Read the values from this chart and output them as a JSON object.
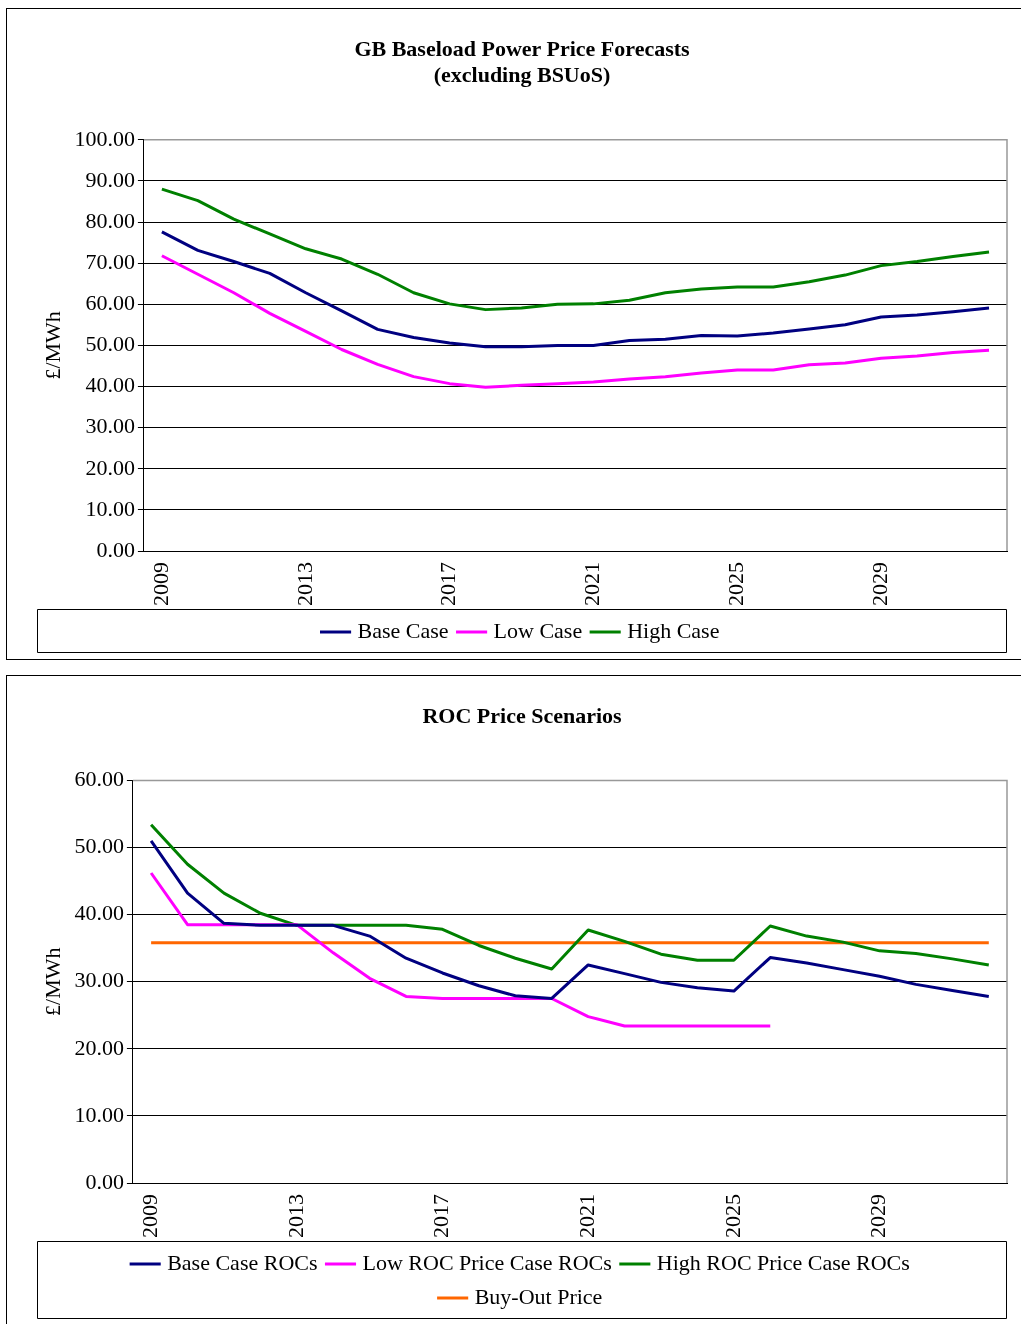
{
  "chart_data": [
    {
      "type": "line",
      "title": "GB Baseload Power Price Forecasts",
      "subtitle": "(excluding BSUoS)",
      "ylabel": "£/MWh",
      "categories": [
        "2009",
        null,
        null,
        null,
        "2013",
        null,
        null,
        null,
        "2017",
        null,
        null,
        null,
        "2021",
        null,
        null,
        null,
        "2025",
        null,
        null,
        null,
        "2029",
        null,
        null,
        null
      ],
      "series": [
        {
          "name": "Base Case",
          "color": "#000080",
          "values": [
            77.6,
            73.1,
            70.4,
            67.5,
            62.8,
            58.4,
            53.9,
            51.9,
            50.6,
            49.7,
            49.7,
            50.0,
            50.0,
            51.2,
            51.5,
            52.4,
            52.3,
            53.0,
            54.0,
            55.0,
            56.9,
            57.4,
            58.2,
            59.1
          ]
        },
        {
          "name": "Low Case",
          "color": "#ff00ff",
          "values": [
            71.8,
            67.3,
            62.8,
            57.8,
            53.4,
            49.0,
            45.4,
            42.4,
            40.7,
            39.8,
            40.3,
            40.7,
            41.1,
            41.8,
            42.4,
            43.3,
            44.0,
            44.0,
            45.3,
            45.7,
            46.9,
            47.4,
            48.3,
            48.8
          ]
        },
        {
          "name": "High Case",
          "color": "#008000",
          "values": [
            88.0,
            85.2,
            80.7,
            77.1,
            73.5,
            71.0,
            67.3,
            62.8,
            60.1,
            58.7,
            59.1,
            60.0,
            60.1,
            61.0,
            62.8,
            63.7,
            64.2,
            64.2,
            65.5,
            67.1,
            69.4,
            70.4,
            71.6,
            72.7
          ]
        }
      ],
      "ylim": [
        0,
        100
      ],
      "yticks": [
        {
          "value": 0,
          "label": "0.00"
        },
        {
          "value": 10,
          "label": "10.00"
        },
        {
          "value": 20,
          "label": "20.00"
        },
        {
          "value": 30,
          "label": "30.00"
        },
        {
          "value": 40,
          "label": "40.00"
        },
        {
          "value": 50,
          "label": "50.00"
        },
        {
          "value": 60,
          "label": "60.00"
        },
        {
          "value": 70,
          "label": "70.00"
        },
        {
          "value": 80,
          "label": "80.00"
        },
        {
          "value": 90,
          "label": "90.00"
        },
        {
          "value": 100,
          "label": "100.00"
        }
      ],
      "grid": "y",
      "legend": "bottom",
      "marker": "none"
    },
    {
      "type": "line",
      "title": "ROC Price Scenarios",
      "ylabel": "£/MWh",
      "categories": [
        "2009",
        null,
        null,
        null,
        "2013",
        null,
        null,
        null,
        "2017",
        null,
        null,
        null,
        "2021",
        null,
        null,
        null,
        "2025",
        null,
        null,
        null,
        "2029",
        null,
        null,
        null
      ],
      "series": [
        {
          "name": "Base Case ROCs",
          "color": "#000080",
          "values": [
            51.0,
            43.2,
            38.7,
            38.4,
            38.4,
            38.4,
            36.8,
            33.5,
            31.3,
            29.4,
            27.9,
            27.5,
            32.5,
            31.2,
            29.9,
            29.1,
            28.6,
            33.6,
            32.8,
            31.8,
            30.8,
            29.6,
            28.7,
            27.8
          ]
        },
        {
          "name": "Low ROC Price Case ROCs",
          "color": "#ff00ff",
          "values": [
            46.2,
            38.5,
            38.5,
            38.5,
            38.5,
            34.3,
            30.5,
            27.8,
            27.5,
            27.5,
            27.5,
            27.5,
            24.8,
            23.4,
            23.4,
            23.4,
            23.4,
            23.4,
            null,
            null,
            null,
            null,
            null,
            null
          ]
        },
        {
          "name": "High ROC Price Case ROCs",
          "color": "#008000",
          "values": [
            53.4,
            47.5,
            43.2,
            40.2,
            38.4,
            38.4,
            38.4,
            38.4,
            37.8,
            35.4,
            33.5,
            31.9,
            37.7,
            36.0,
            34.1,
            33.2,
            33.2,
            38.3,
            36.8,
            35.9,
            34.6,
            34.2,
            33.4,
            32.5
          ]
        },
        {
          "name": "Buy-Out Price",
          "color": "#ff6600",
          "values": [
            35.8,
            35.8,
            35.8,
            35.8,
            35.8,
            35.8,
            35.8,
            35.8,
            35.8,
            35.8,
            35.8,
            35.8,
            35.8,
            35.8,
            35.8,
            35.8,
            35.8,
            35.8,
            35.8,
            35.8,
            35.8,
            35.8,
            35.8,
            35.8
          ]
        }
      ],
      "ylim": [
        0,
        60
      ],
      "yticks": [
        {
          "value": 0,
          "label": "0.00"
        },
        {
          "value": 10,
          "label": "10.00"
        },
        {
          "value": 20,
          "label": "20.00"
        },
        {
          "value": 30,
          "label": "30.00"
        },
        {
          "value": 40,
          "label": "40.00"
        },
        {
          "value": 50,
          "label": "50.00"
        },
        {
          "value": 60,
          "label": "60.00"
        }
      ],
      "grid": "y",
      "legend": "bottom",
      "marker": "none"
    }
  ]
}
